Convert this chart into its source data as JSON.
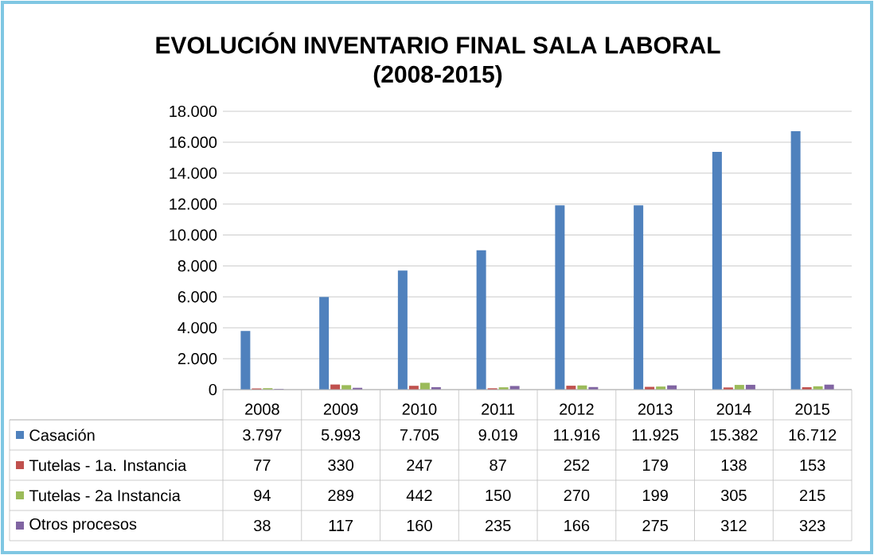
{
  "chart_data": {
    "type": "bar",
    "title": "EVOLUCIÓN INVENTARIO FINAL SALA LABORAL",
    "subtitle": "(2008-2015)",
    "categories": [
      "2008",
      "2009",
      "2010",
      "2011",
      "2012",
      "2013",
      "2014",
      "2015"
    ],
    "series": [
      {
        "name": "Casación",
        "color": "#4f81bd",
        "values": [
          3797,
          5993,
          7705,
          9019,
          11916,
          11925,
          15382,
          16712
        ],
        "value_labels": [
          "3.797",
          "5.993",
          "7.705",
          "9.019",
          "11.916",
          "11.925",
          "15.382",
          "16.712"
        ]
      },
      {
        "name": "Tutelas - 1a. Instancia",
        "color": "#c0504d",
        "values": [
          77,
          330,
          247,
          87,
          252,
          179,
          138,
          153
        ],
        "value_labels": [
          "77",
          "330",
          "247",
          "87",
          "252",
          "179",
          "138",
          "153"
        ]
      },
      {
        "name": "Tutelas - 2a Instancia",
        "color": "#9bbb59",
        "values": [
          94,
          289,
          442,
          150,
          270,
          199,
          305,
          215
        ],
        "value_labels": [
          "94",
          "289",
          "442",
          "150",
          "270",
          "199",
          "305",
          "215"
        ]
      },
      {
        "name": "Otros procesos",
        "color": "#8064a2",
        "values": [
          38,
          117,
          160,
          235,
          166,
          275,
          312,
          323
        ],
        "value_labels": [
          "38",
          "117",
          "160",
          "235",
          "166",
          "275",
          "312",
          "323"
        ]
      }
    ],
    "ylim": [
      0,
      18000
    ],
    "yticks": [
      {
        "value": 0,
        "label": "0"
      },
      {
        "value": 2000,
        "label": "2.000"
      },
      {
        "value": 4000,
        "label": "4.000"
      },
      {
        "value": 6000,
        "label": "6.000"
      },
      {
        "value": 8000,
        "label": "8.000"
      },
      {
        "value": 10000,
        "label": "10.000"
      },
      {
        "value": 12000,
        "label": "12.000"
      },
      {
        "value": 14000,
        "label": "14.000"
      },
      {
        "value": 16000,
        "label": "16.000"
      },
      {
        "value": 18000,
        "label": "18.000"
      }
    ],
    "grid": "y",
    "legend": "bottom"
  }
}
